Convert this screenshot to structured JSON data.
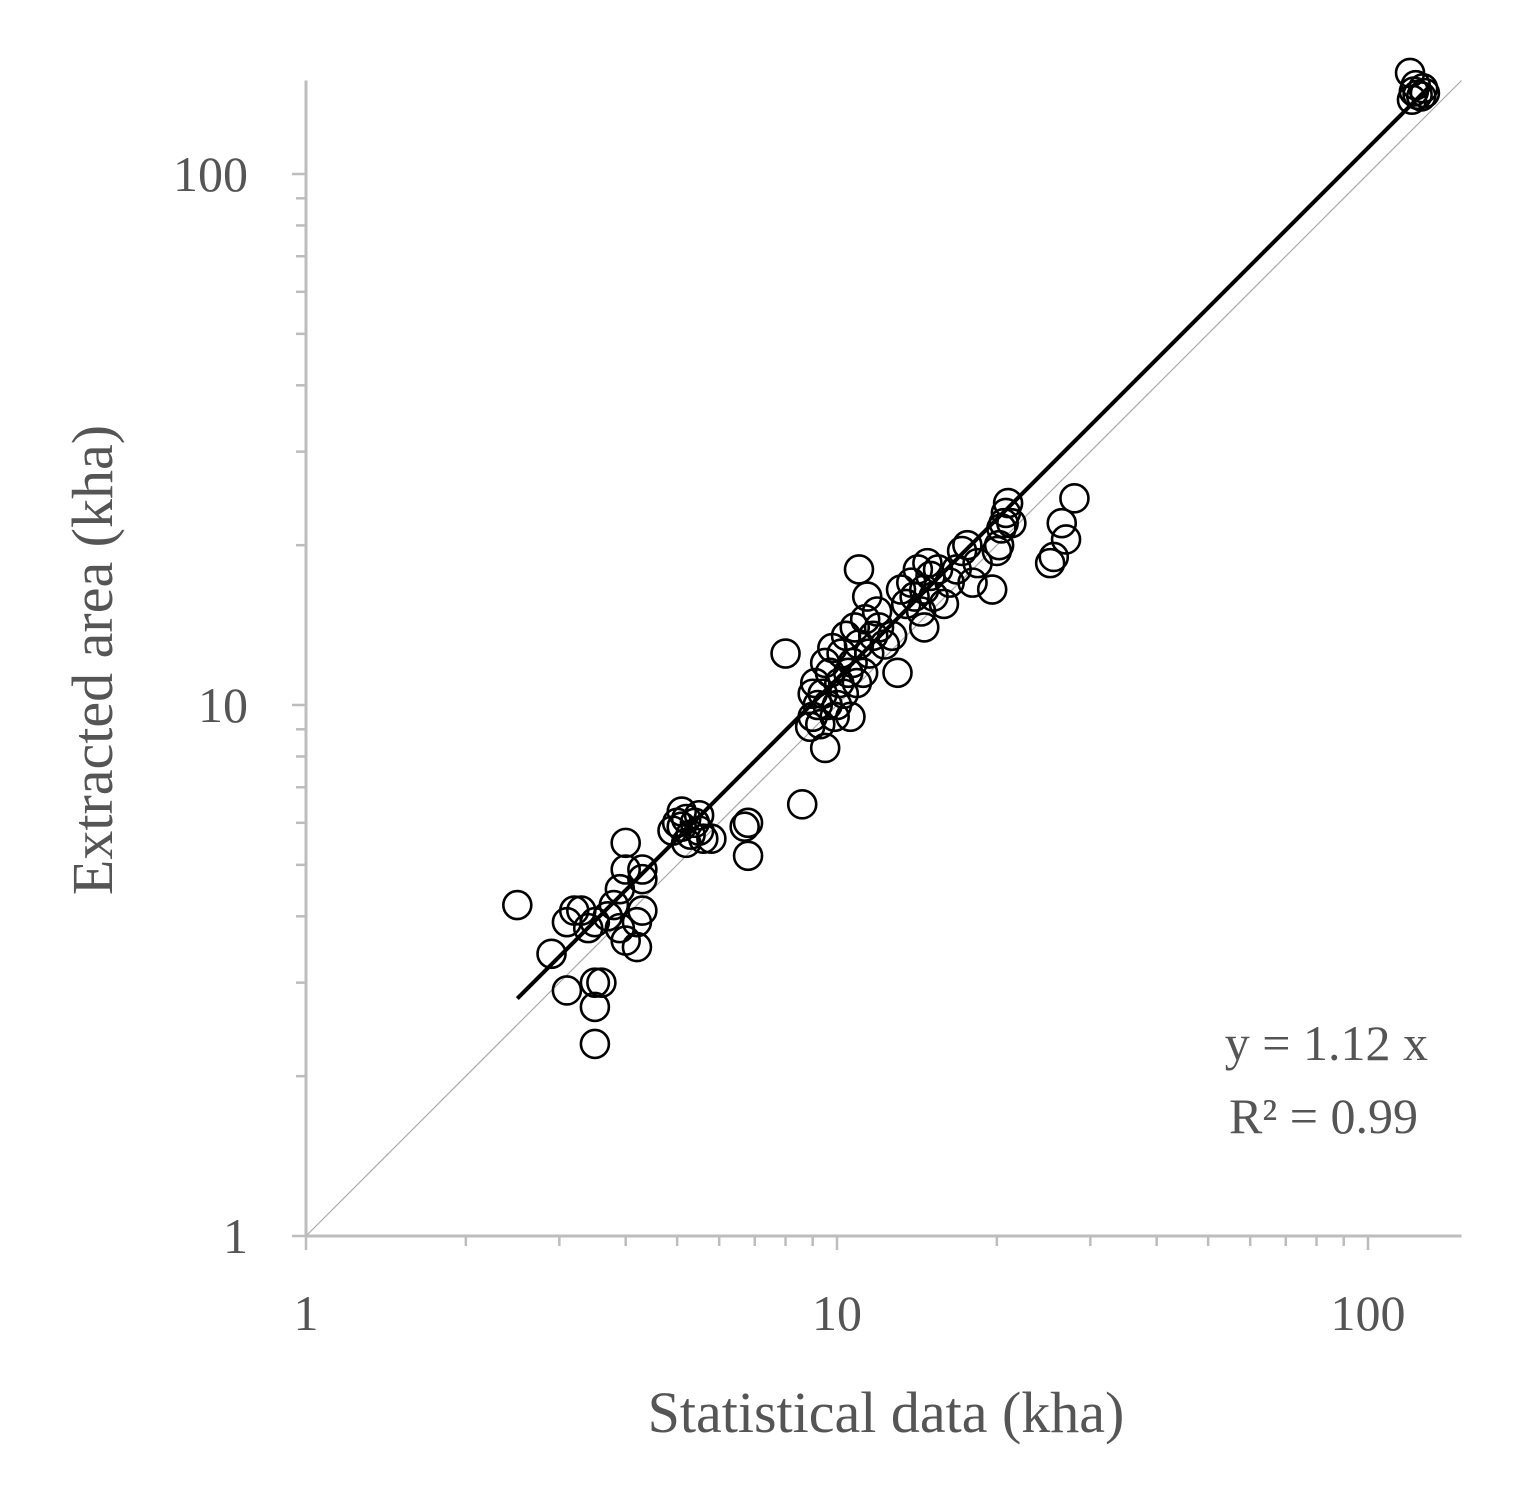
{
  "chart_data": {
    "type": "scatter",
    "xlabel": "Statistical data (kha)",
    "ylabel": "Extracted area (kha)",
    "xscale": "log",
    "yscale": "log",
    "xlim": [
      1,
      150
    ],
    "ylim": [
      1,
      150
    ],
    "x_ticks": [
      {
        "value": 1,
        "label": "1"
      },
      {
        "value": 10,
        "label": "10"
      },
      {
        "value": 100,
        "label": "100"
      }
    ],
    "y_ticks": [
      {
        "value": 1,
        "label": "1"
      },
      {
        "value": 10,
        "label": "10"
      },
      {
        "value": 100,
        "label": "100"
      }
    ],
    "grid": false,
    "annotations": [
      "y = 1.12 x",
      "R² = 0.99"
    ],
    "fit_line": {
      "slope": 1.12,
      "x_range": [
        2.5,
        130
      ],
      "color": "#000000"
    },
    "reference_line": {
      "slope": 1.0,
      "x_range": [
        1,
        150
      ],
      "color": "#aaaaaa"
    },
    "marker": {
      "shape": "open-circle",
      "color": "#000000"
    },
    "points": [
      [
        2.5,
        4.2
      ],
      [
        2.9,
        3.4
      ],
      [
        3.1,
        2.9
      ],
      [
        3.1,
        3.9
      ],
      [
        3.2,
        4.1
      ],
      [
        3.3,
        4.1
      ],
      [
        3.4,
        3.8
      ],
      [
        3.5,
        2.3
      ],
      [
        3.5,
        2.7
      ],
      [
        3.5,
        3.0
      ],
      [
        3.5,
        3.9
      ],
      [
        3.6,
        3.0
      ],
      [
        3.7,
        4.0
      ],
      [
        3.8,
        4.2
      ],
      [
        3.9,
        3.8
      ],
      [
        3.9,
        4.5
      ],
      [
        4.0,
        4.9
      ],
      [
        4.0,
        3.6
      ],
      [
        4.0,
        5.5
      ],
      [
        4.2,
        3.9
      ],
      [
        4.2,
        3.5
      ],
      [
        4.3,
        4.7
      ],
      [
        4.3,
        4.1
      ],
      [
        4.3,
        4.9
      ],
      [
        4.9,
        5.8
      ],
      [
        5.0,
        6.0
      ],
      [
        5.1,
        6.3
      ],
      [
        5.1,
        5.9
      ],
      [
        5.2,
        5.5
      ],
      [
        5.2,
        6.1
      ],
      [
        5.3,
        5.7
      ],
      [
        5.4,
        6.0
      ],
      [
        5.5,
        6.2
      ],
      [
        5.5,
        5.8
      ],
      [
        5.6,
        5.6
      ],
      [
        5.8,
        5.6
      ],
      [
        6.7,
        5.9
      ],
      [
        6.8,
        6.0
      ],
      [
        6.8,
        5.2
      ],
      [
        8.0,
        12.5
      ],
      [
        8.6,
        6.5
      ],
      [
        8.9,
        9.1
      ],
      [
        9.0,
        9.5
      ],
      [
        9.0,
        10.5
      ],
      [
        9.1,
        11.0
      ],
      [
        9.2,
        10.0
      ],
      [
        9.3,
        9.2
      ],
      [
        9.4,
        10.5
      ],
      [
        9.5,
        8.3
      ],
      [
        9.5,
        12.0
      ],
      [
        9.6,
        10.0
      ],
      [
        9.7,
        11.5
      ],
      [
        9.8,
        12.8
      ],
      [
        9.9,
        9.5
      ],
      [
        10.0,
        10.0
      ],
      [
        10.1,
        11.0
      ],
      [
        10.2,
        12.5
      ],
      [
        10.3,
        10.5
      ],
      [
        10.4,
        13.5
      ],
      [
        10.5,
        11.5
      ],
      [
        10.6,
        9.5
      ],
      [
        10.7,
        12.0
      ],
      [
        10.8,
        14.0
      ],
      [
        10.9,
        11.0
      ],
      [
        11.0,
        13.0
      ],
      [
        11.0,
        18.0
      ],
      [
        11.2,
        11.5
      ],
      [
        11.3,
        14.5
      ],
      [
        11.4,
        16.0
      ],
      [
        11.5,
        12.5
      ],
      [
        11.7,
        13.5
      ],
      [
        11.9,
        15.0
      ],
      [
        12.0,
        14.0
      ],
      [
        12.3,
        13.0
      ],
      [
        12.7,
        13.5
      ],
      [
        13.0,
        11.5
      ],
      [
        13.2,
        16.5
      ],
      [
        13.5,
        15.5
      ],
      [
        13.8,
        17.0
      ],
      [
        14.0,
        16.0
      ],
      [
        14.2,
        18.0
      ],
      [
        14.4,
        15.0
      ],
      [
        14.6,
        16.5
      ],
      [
        14.6,
        14.0
      ],
      [
        14.8,
        18.5
      ],
      [
        15.0,
        17.5
      ],
      [
        15.2,
        16.0
      ],
      [
        15.5,
        18.0
      ],
      [
        15.9,
        15.5
      ],
      [
        16.3,
        17.0
      ],
      [
        16.8,
        18.0
      ],
      [
        17.2,
        19.5
      ],
      [
        17.6,
        20.0
      ],
      [
        18.0,
        17.0
      ],
      [
        18.4,
        18.5
      ],
      [
        19.6,
        16.5
      ],
      [
        20.0,
        19.5
      ],
      [
        20.2,
        20.0
      ],
      [
        20.4,
        21.5
      ],
      [
        20.6,
        22.0
      ],
      [
        20.8,
        23.0
      ],
      [
        21.0,
        24.0
      ],
      [
        21.3,
        22.0
      ],
      [
        25.2,
        18.5
      ],
      [
        25.6,
        19.0
      ],
      [
        26.5,
        22.0
      ],
      [
        27.0,
        20.5
      ],
      [
        28.0,
        24.5
      ],
      [
        120.0,
        155.0
      ],
      [
        121.0,
        138.0
      ],
      [
        122.0,
        143.0
      ],
      [
        123.0,
        147.0
      ],
      [
        124.0,
        141.0
      ],
      [
        126.0,
        140.0
      ],
      [
        127.0,
        145.0
      ],
      [
        128.0,
        142.0
      ]
    ]
  }
}
